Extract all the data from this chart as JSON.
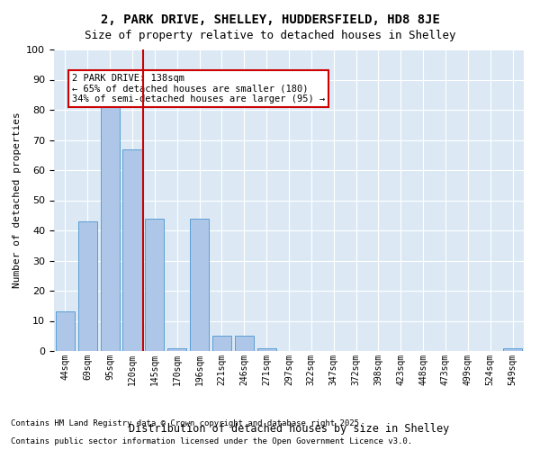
{
  "title_line1": "2, PARK DRIVE, SHELLEY, HUDDERSFIELD, HD8 8JE",
  "title_line2": "Size of property relative to detached houses in Shelley",
  "xlabel": "Distribution of detached houses by size in Shelley",
  "ylabel": "Number of detached properties",
  "categories": [
    "44sqm",
    "69sqm",
    "95sqm",
    "120sqm",
    "145sqm",
    "170sqm",
    "196sqm",
    "221sqm",
    "246sqm",
    "271sqm",
    "297sqm",
    "322sqm",
    "347sqm",
    "372sqm",
    "398sqm",
    "423sqm",
    "448sqm",
    "473sqm",
    "499sqm",
    "524sqm",
    "549sqm"
  ],
  "values": [
    13,
    43,
    81,
    67,
    44,
    1,
    44,
    5,
    5,
    1,
    0,
    0,
    0,
    0,
    0,
    0,
    0,
    0,
    0,
    0,
    1
  ],
  "bar_color": "#aec6e8",
  "bar_edge_color": "#5a9fd4",
  "vline_x": 3.5,
  "vline_color": "#cc0000",
  "annotation_text": "2 PARK DRIVE: 138sqm\n← 65% of detached houses are smaller (180)\n34% of semi-detached houses are larger (95) →",
  "annotation_box_color": "#ffffff",
  "annotation_box_edge": "#cc0000",
  "plot_bg_color": "#dce9f5",
  "ylim": [
    0,
    100
  ],
  "yticks": [
    0,
    10,
    20,
    30,
    40,
    50,
    60,
    70,
    80,
    90,
    100
  ],
  "footer_line1": "Contains HM Land Registry data © Crown copyright and database right 2025.",
  "footer_line2": "Contains public sector information licensed under the Open Government Licence v3.0."
}
